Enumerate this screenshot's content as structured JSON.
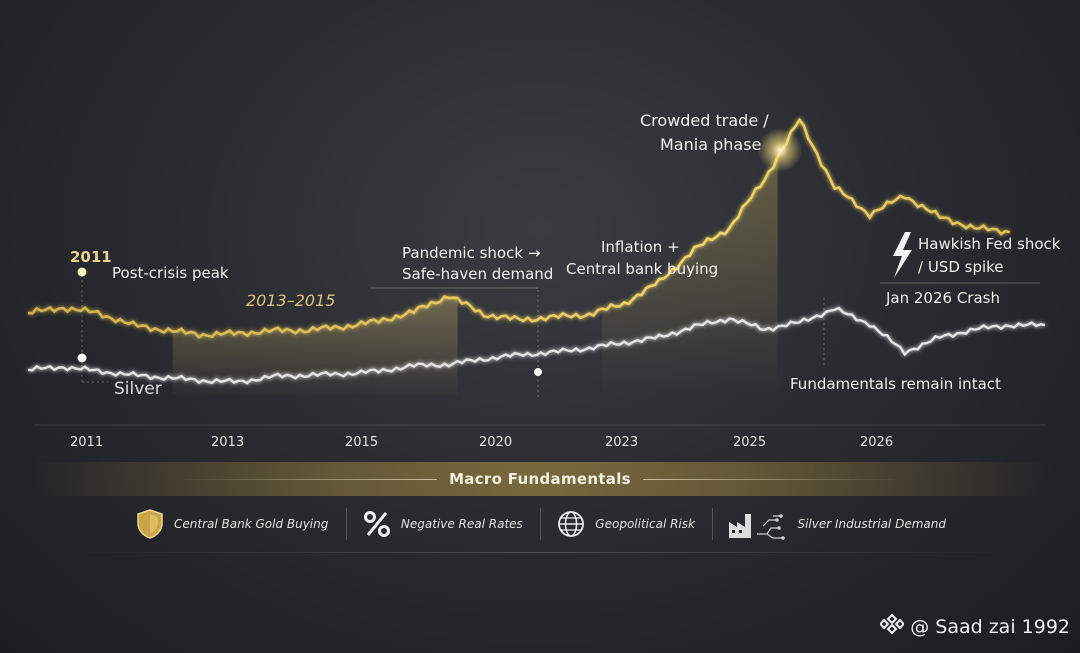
{
  "chart_data": {
    "type": "line",
    "title": "",
    "xlabel": "",
    "ylabel": "",
    "x_ticks": [
      "2011",
      "2013",
      "2015",
      "2020",
      "2023",
      "2025",
      "2026"
    ],
    "grid": false,
    "series": [
      {
        "name": "",
        "color": "#e3c450",
        "values": [
          [
            0,
            0.285
          ],
          [
            1,
            0.305
          ],
          [
            2,
            0.285
          ],
          [
            3,
            0.24
          ],
          [
            4,
            0.22
          ],
          [
            5,
            0.205
          ],
          [
            6,
            0.21
          ],
          [
            7,
            0.22
          ],
          [
            8,
            0.222
          ],
          [
            9,
            0.235
          ],
          [
            10,
            0.255
          ],
          [
            11,
            0.29
          ],
          [
            12,
            0.35
          ],
          [
            13,
            0.28
          ],
          [
            14,
            0.26
          ],
          [
            15,
            0.27
          ],
          [
            16,
            0.28
          ],
          [
            17,
            0.32
          ],
          [
            18,
            0.4
          ],
          [
            19,
            0.52
          ],
          [
            20,
            0.6
          ],
          [
            21,
            0.78
          ],
          [
            22,
            1.0
          ],
          [
            23,
            0.75
          ],
          [
            24,
            0.65
          ],
          [
            25,
            0.72
          ],
          [
            26,
            0.64
          ],
          [
            27,
            0.6
          ],
          [
            28,
            0.585
          ]
        ]
      },
      {
        "name": "Silver",
        "color": "#e2e2e2",
        "values": [
          [
            0,
            0.075
          ],
          [
            1,
            0.085
          ],
          [
            2,
            0.07
          ],
          [
            3,
            0.055
          ],
          [
            4,
            0.045
          ],
          [
            5,
            0.035
          ],
          [
            6,
            0.03
          ],
          [
            7,
            0.05
          ],
          [
            8,
            0.055
          ],
          [
            9,
            0.06
          ],
          [
            10,
            0.07
          ],
          [
            11,
            0.09
          ],
          [
            12,
            0.095
          ],
          [
            13,
            0.115
          ],
          [
            14,
            0.13
          ],
          [
            15,
            0.14
          ],
          [
            16,
            0.155
          ],
          [
            17,
            0.175
          ],
          [
            18,
            0.195
          ],
          [
            19,
            0.235
          ],
          [
            20,
            0.265
          ],
          [
            21,
            0.225
          ],
          [
            22,
            0.25
          ],
          [
            23,
            0.3
          ],
          [
            24,
            0.245
          ],
          [
            25,
            0.14
          ],
          [
            26,
            0.195
          ],
          [
            27,
            0.225
          ],
          [
            28,
            0.24
          ],
          [
            29,
            0.24
          ]
        ]
      }
    ],
    "annotations": [
      {
        "id": "a2011",
        "text": "2011"
      },
      {
        "id": "postcrisis",
        "text": "Post-crisis peak"
      },
      {
        "id": "range",
        "text": "2013–2015"
      },
      {
        "id": "pandemic1",
        "text": "Pandemic shock →"
      },
      {
        "id": "pandemic2",
        "text": "Safe-haven demand"
      },
      {
        "id": "infl1",
        "text": "Inflation +"
      },
      {
        "id": "infl2",
        "text": "Central bank buying"
      },
      {
        "id": "crowd1",
        "text": "Crowded trade /"
      },
      {
        "id": "crowd2",
        "text": "Mania phase"
      },
      {
        "id": "hawk1",
        "text": "Hawkish Fed shock"
      },
      {
        "id": "hawk2",
        "text": "/ USD spike"
      },
      {
        "id": "crash",
        "text": "Jan 2026 Crash"
      },
      {
        "id": "silver",
        "text": "Silver"
      },
      {
        "id": "intact",
        "text": "Fundamentals remain intact"
      }
    ]
  },
  "macro": {
    "title": "Macro Fundamentals",
    "items": [
      {
        "label": "Central Bank Gold Buying",
        "icon": "shield-icon"
      },
      {
        "label": "Negative Real Rates",
        "icon": "percent-icon"
      },
      {
        "label": "Geopolitical Risk",
        "icon": "globe-icon"
      },
      {
        "label": "Silver Industrial Demand",
        "icon": "factory-icon"
      }
    ]
  },
  "watermark": {
    "text": "@ Saad zai 1992",
    "icon": "binance-logo-icon"
  },
  "colors": {
    "gold": "#e3c450",
    "silver": "#e2e2e2",
    "accent": "#b89a4a"
  }
}
